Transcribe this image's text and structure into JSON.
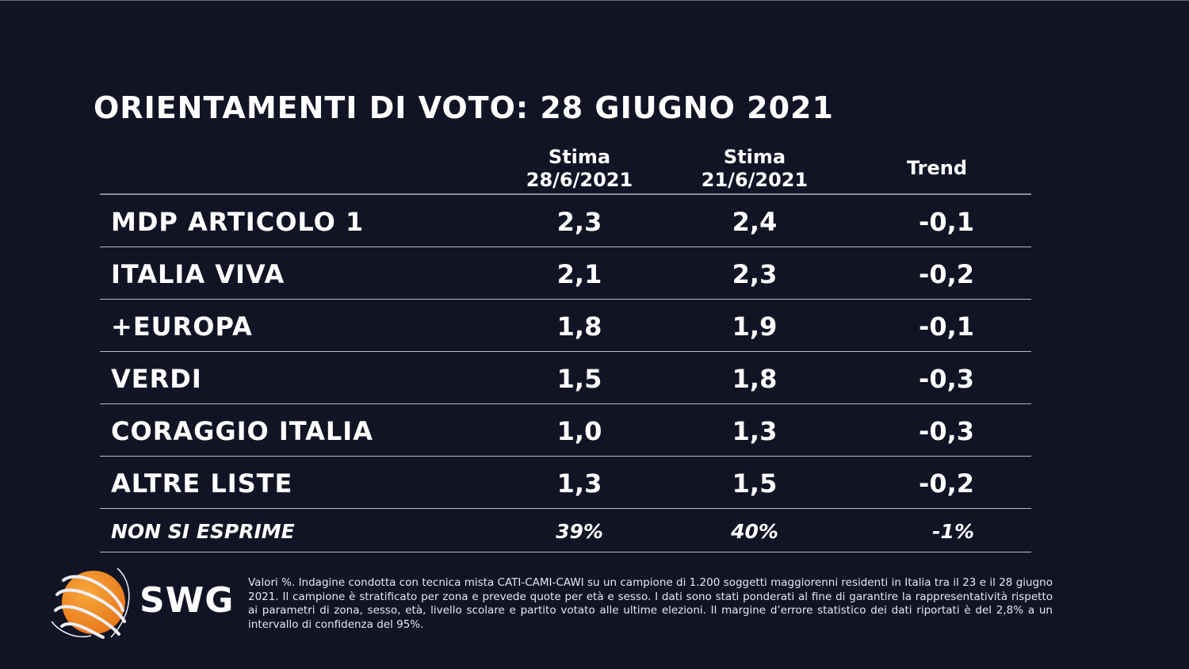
{
  "title": "ORIENTAMENTI DI VOTO: 28 GIUGNO 2021",
  "table": {
    "headers": [
      {
        "line1": "Stima",
        "line2": "28/6/2021"
      },
      {
        "line1": "Stima",
        "line2": "21/6/2021"
      },
      {
        "line1": "Trend",
        "line2": ""
      }
    ],
    "rows": [
      {
        "party": "MDP ARTICOLO 1",
        "current": "2,3",
        "previous": "2,4",
        "trend": "-0,1"
      },
      {
        "party": "ITALIA VIVA",
        "current": "2,1",
        "previous": "2,3",
        "trend": "-0,2"
      },
      {
        "party": "+EUROPA",
        "current": "1,8",
        "previous": "1,9",
        "trend": "-0,1"
      },
      {
        "party": "VERDI",
        "current": "1,5",
        "previous": "1,8",
        "trend": "-0,3"
      },
      {
        "party": "CORAGGIO ITALIA",
        "current": "1,0",
        "previous": "1,3",
        "trend": "-0,3"
      },
      {
        "party": "ALTRE LISTE",
        "current": "1,3",
        "previous": "1,5",
        "trend": "-0,2"
      }
    ],
    "footer_row": {
      "party": "NON SI ESPRIME",
      "current": "39%",
      "previous": "40%",
      "trend": "-1%"
    }
  },
  "logo": {
    "text": "SWG",
    "icon": "globe-icon",
    "accent": "#f39120"
  },
  "footnote": "Valori %. Indagine condotta con tecnica mista CATI-CAMI-CAWI su un campione di 1.200 soggetti maggiorenni residenti in Italia tra il 23 e il 28 giugno 2021. Il campione è stratificato per zona e prevede quote per età e sesso. I dati sono stati ponderati al fine di garantire la rappresentatività rispetto ai parametri di zona, sesso, età, livello scolare e partito votato alle ultime elezioni. Il margine d’errore statistico dei dati riportati è del 2,8% a un intervallo di confidenza del 95%."
}
